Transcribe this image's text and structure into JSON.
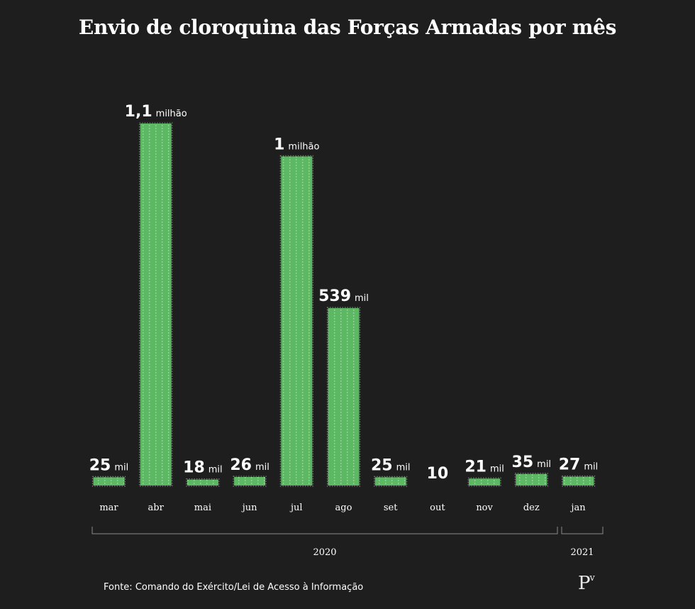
{
  "title": "Envio de cloroquina das Forças Armadas por mês",
  "source": "Fonte: Comando do Exército/Lei de Acesso à Informação",
  "logo": {
    "main": "P",
    "sup": "v"
  },
  "colors": {
    "background": "#1e1e1e",
    "bar": "#5cb863",
    "text": "#ffffff"
  },
  "chart_data": {
    "type": "bar",
    "title": "Envio de cloroquina das Forças Armadas por mês",
    "xlabel": "",
    "ylabel": "",
    "categories": [
      "mar",
      "abr",
      "mai",
      "jun",
      "jul",
      "ago",
      "set",
      "out",
      "nov",
      "dez",
      "jan"
    ],
    "values": [
      25000,
      1100000,
      18000,
      26000,
      1000000,
      539000,
      25000,
      10,
      21000,
      35000,
      27000
    ],
    "labels": [
      {
        "num": "25",
        "unit": "mil"
      },
      {
        "num": "1,1",
        "unit": "milhão"
      },
      {
        "num": "18",
        "unit": "mil"
      },
      {
        "num": "26",
        "unit": "mil"
      },
      {
        "num": "1",
        "unit": "milhão"
      },
      {
        "num": "539",
        "unit": "mil"
      },
      {
        "num": "25",
        "unit": "mil"
      },
      {
        "num": "10",
        "unit": ""
      },
      {
        "num": "21",
        "unit": "mil"
      },
      {
        "num": "35",
        "unit": "mil"
      },
      {
        "num": "27",
        "unit": "mil"
      }
    ],
    "year_groups": [
      {
        "label": "2020",
        "first": 0,
        "last": 9
      },
      {
        "label": "2021",
        "first": 10,
        "last": 10
      }
    ],
    "ylim": [
      0,
      1100000
    ],
    "grid": false,
    "legend": "none"
  }
}
